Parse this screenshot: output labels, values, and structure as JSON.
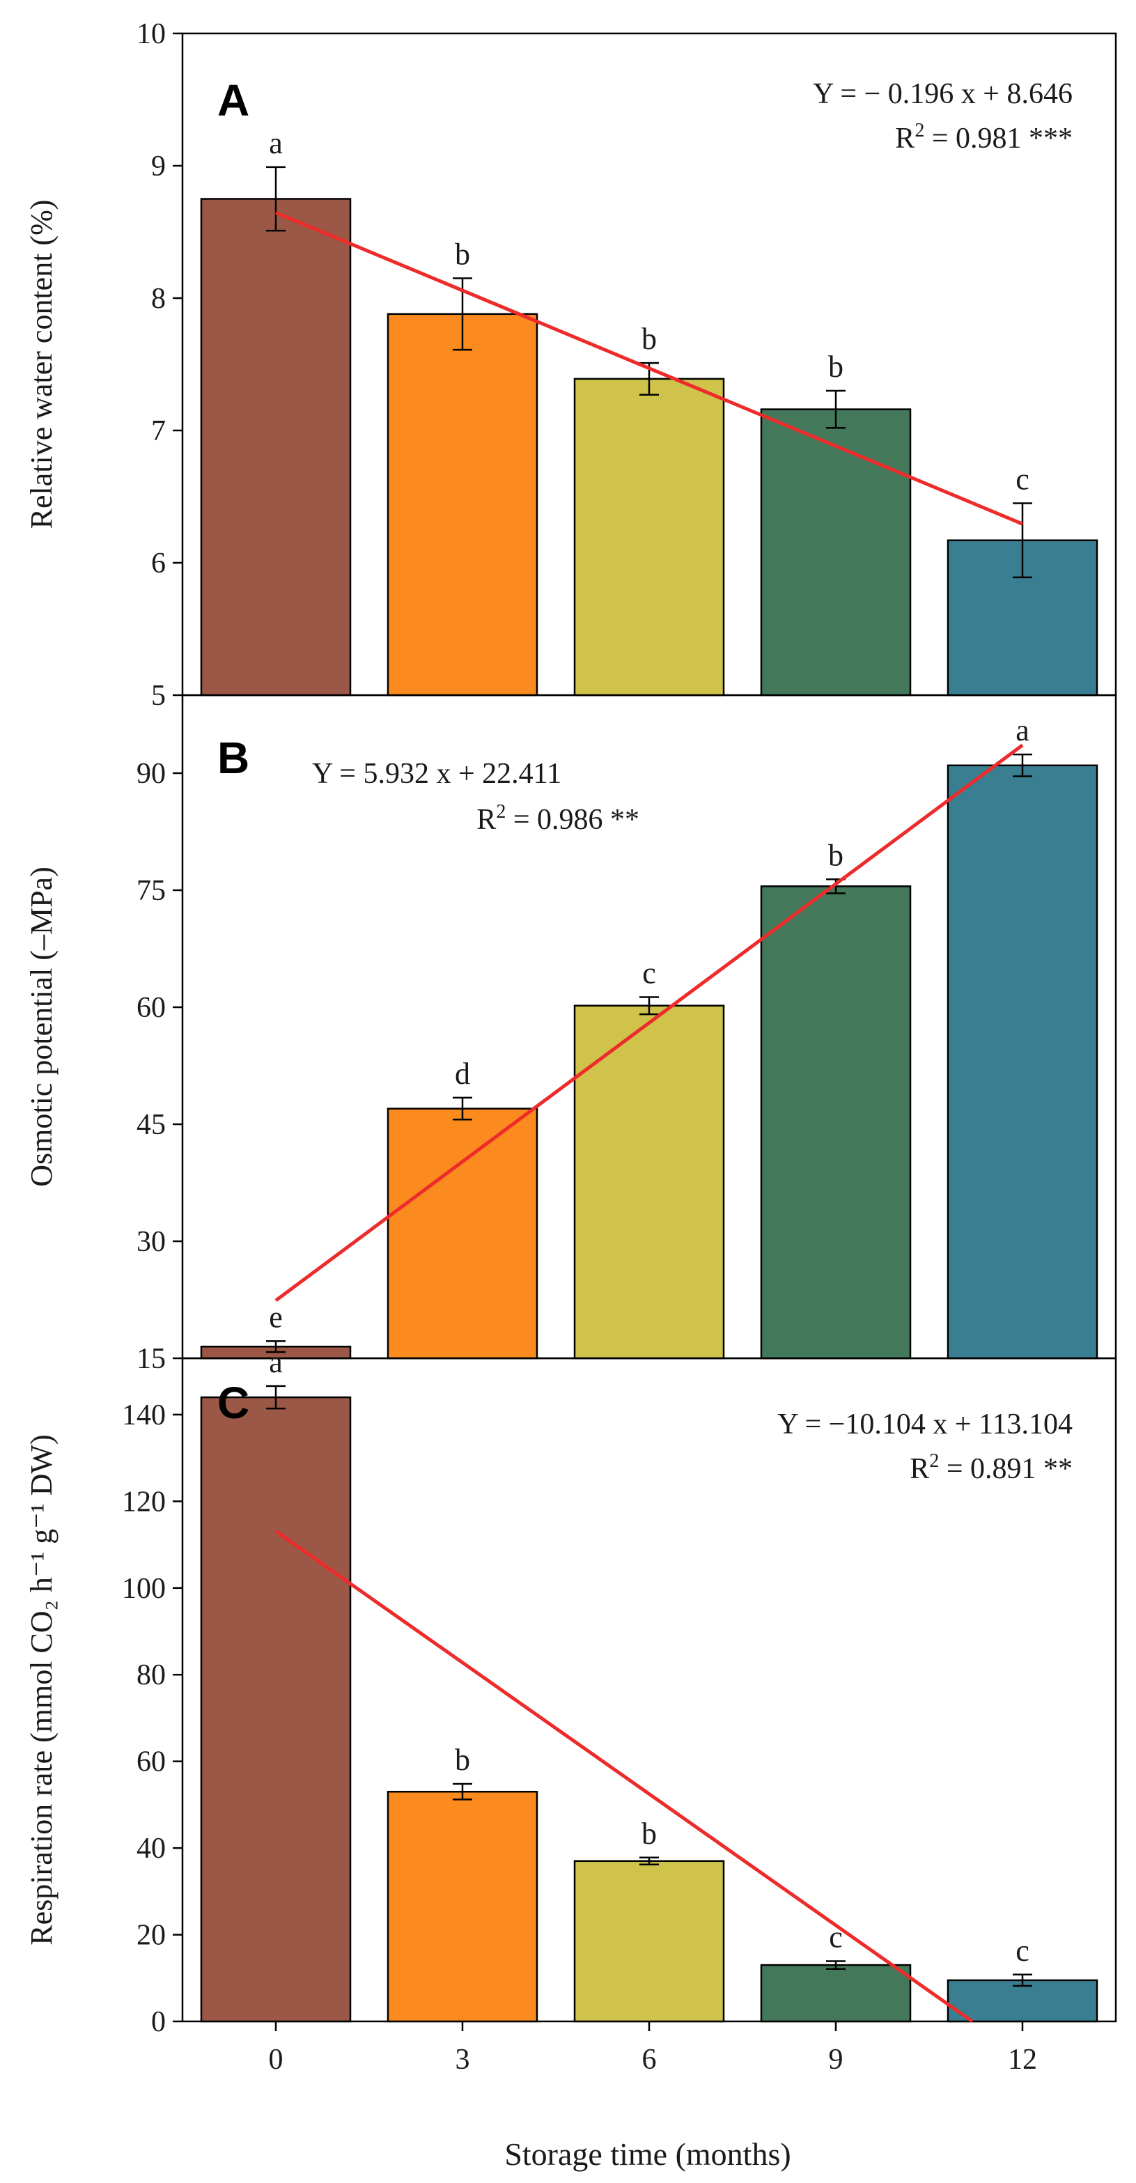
{
  "figure": {
    "x_categories": [
      "0",
      "3",
      "6",
      "9",
      "12"
    ],
    "xlabel": "Storage time (months)",
    "bar_colors": [
      "#9b5846",
      "#fb8a1f",
      "#cfc34c",
      "#43795a",
      "#3a7f91"
    ],
    "fit_line_color": "#ee2b2b"
  },
  "chart_data": [
    {
      "type": "bar",
      "panel_label": "A",
      "categories": [
        "0",
        "3",
        "6",
        "9",
        "12"
      ],
      "values": [
        8.75,
        7.88,
        7.39,
        7.16,
        6.17
      ],
      "errors": [
        0.24,
        0.27,
        0.12,
        0.14,
        0.28
      ],
      "significance": [
        "a",
        "b",
        "b",
        "b",
        "c"
      ],
      "ylabel": "Relative water content (%)",
      "ylim": [
        5,
        10
      ],
      "yticks": [
        5,
        6,
        7,
        8,
        9,
        10
      ],
      "fit": {
        "slope": -0.196,
        "intercept": 8.646
      },
      "equation": "Y = − 0.196 x + 8.646",
      "r2_prefix": "R",
      "r2_sup": "2",
      "r2_value": " = 0.981 ***"
    },
    {
      "type": "bar",
      "panel_label": "B",
      "categories": [
        "0",
        "3",
        "6",
        "9",
        "12"
      ],
      "values": [
        16.5,
        47.0,
        60.2,
        75.5,
        91.0
      ],
      "errors": [
        0.7,
        1.4,
        1.1,
        0.9,
        1.4
      ],
      "significance": [
        "e",
        "d",
        "c",
        "b",
        "a"
      ],
      "ylabel": "Osmotic potential (–MPa)",
      "ylim": [
        15,
        100
      ],
      "yticks": [
        15,
        30,
        45,
        60,
        75,
        90
      ],
      "fit": {
        "slope": 5.932,
        "intercept": 22.411
      },
      "equation": "Y = 5.932 x + 22.411",
      "r2_prefix": "R",
      "r2_sup": "2",
      "r2_value": " = 0.986 **"
    },
    {
      "type": "bar",
      "panel_label": "C",
      "categories": [
        "0",
        "3",
        "6",
        "9",
        "12"
      ],
      "values": [
        144.0,
        53.0,
        37.0,
        13.0,
        9.5
      ],
      "errors": [
        2.6,
        1.8,
        0.8,
        0.9,
        1.3
      ],
      "significance": [
        "a",
        "b",
        "b",
        "c",
        "c"
      ],
      "ylabel": "Respiration rate (mmol CO₂ h⁻¹ g⁻¹ DW)",
      "ylim": [
        0,
        153
      ],
      "yticks": [
        0,
        20,
        40,
        60,
        80,
        100,
        120,
        140
      ],
      "fit": {
        "slope": -10.104,
        "intercept": 113.104
      },
      "equation": "Y = −10.104 x + 113.104",
      "r2_prefix": "R",
      "r2_sup": "2",
      "r2_value": " = 0.891 **"
    }
  ]
}
